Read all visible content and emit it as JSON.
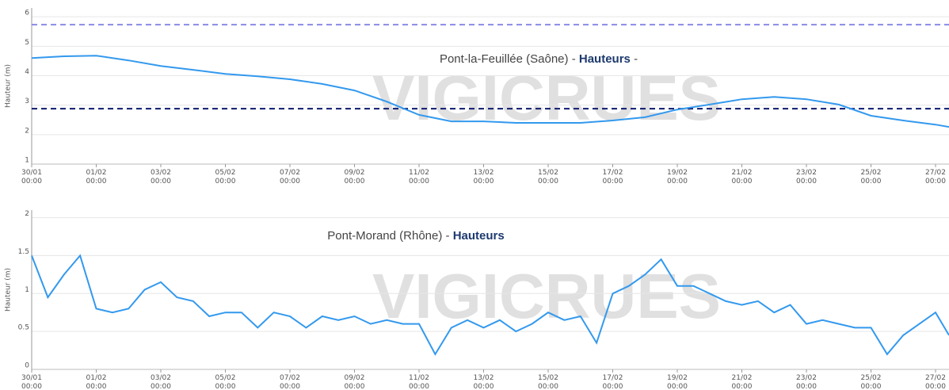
{
  "chart_data": [
    {
      "type": "line",
      "title": "Pont-la-Feuillée (Saône) -",
      "title_bold": "Hauteurs",
      "title_suffix": "-",
      "watermark": "VIGICRUES",
      "ylabel": "Hauteur (m)",
      "xlim": [
        "30/01 00:00",
        "27/02 10:00"
      ],
      "xticks": [
        "30/01 00:00",
        "01/02 00:00",
        "03/02 00:00",
        "05/02 00:00",
        "07/02 00:00",
        "09/02 00:00",
        "11/02 00:00",
        "13/02 00:00",
        "15/02 00:00",
        "17/02 00:00",
        "19/02 00:00",
        "21/02 00:00",
        "23/02 00:00",
        "25/02 00:00",
        "27/02 00:00"
      ],
      "ylim": [
        1,
        6.3
      ],
      "yticks": [
        1,
        2,
        3,
        4,
        5,
        6
      ],
      "grid": true,
      "thresholds": [
        {
          "value": 5.73,
          "color": "#8a8ae6"
        },
        {
          "value": 2.88,
          "color": "#0d1a6e"
        }
      ],
      "x": [
        "30/01 00:00",
        "31/01 00:00",
        "01/02 00:00",
        "02/02 00:00",
        "03/02 00:00",
        "04/02 00:00",
        "05/02 00:00",
        "06/02 00:00",
        "07/02 00:00",
        "08/02 00:00",
        "09/02 00:00",
        "10/02 00:00",
        "11/02 00:00",
        "12/02 00:00",
        "13/02 00:00",
        "14/02 00:00",
        "15/02 00:00",
        "16/02 00:00",
        "17/02 00:00",
        "18/02 00:00",
        "19/02 00:00",
        "20/02 00:00",
        "21/02 00:00",
        "22/02 00:00",
        "23/02 00:00",
        "24/02 00:00",
        "25/02 00:00",
        "26/02 00:00",
        "27/02 00:00",
        "27/02 10:00"
      ],
      "series": [
        {
          "name": "Hauteurs",
          "color": "#3399ee",
          "values": [
            4.6,
            4.66,
            4.68,
            4.52,
            4.33,
            4.2,
            4.06,
            3.98,
            3.88,
            3.72,
            3.5,
            3.12,
            2.67,
            2.45,
            2.45,
            2.4,
            2.4,
            2.4,
            2.48,
            2.59,
            2.85,
            3.02,
            3.2,
            3.28,
            3.2,
            3.02,
            2.64,
            2.48,
            2.34,
            2.26
          ]
        }
      ]
    },
    {
      "type": "line",
      "title": "Pont-Morand (Rhône) -",
      "title_bold": "Hauteurs",
      "title_suffix": null,
      "watermark": "VIGICRUES",
      "ylabel": "Hauteur (m)",
      "xlim": [
        "30/01 00:00",
        "27/02 10:00"
      ],
      "xticks": [
        "30/01 00:00",
        "01/02 00:00",
        "03/02 00:00",
        "05/02 00:00",
        "07/02 00:00",
        "09/02 00:00",
        "11/02 00:00",
        "13/02 00:00",
        "15/02 00:00",
        "17/02 00:00",
        "19/02 00:00",
        "21/02 00:00",
        "23/02 00:00",
        "25/02 00:00",
        "27/02 00:00"
      ],
      "ylim": [
        0,
        2.1
      ],
      "yticks": [
        0,
        0.5,
        1,
        1.5,
        2
      ],
      "grid": true,
      "thresholds": [],
      "x": [
        "30/01 00:00",
        "30/01 12:00",
        "31/01 00:00",
        "31/01 12:00",
        "01/02 00:00",
        "01/02 12:00",
        "02/02 00:00",
        "02/02 12:00",
        "03/02 00:00",
        "03/02 12:00",
        "04/02 00:00",
        "04/02 12:00",
        "05/02 00:00",
        "05/02 12:00",
        "06/02 00:00",
        "06/02 12:00",
        "07/02 00:00",
        "07/02 12:00",
        "08/02 00:00",
        "08/02 12:00",
        "09/02 00:00",
        "09/02 12:00",
        "10/02 00:00",
        "10/02 12:00",
        "11/02 00:00",
        "11/02 12:00",
        "12/02 00:00",
        "12/02 12:00",
        "13/02 00:00",
        "13/02 12:00",
        "14/02 00:00",
        "14/02 12:00",
        "15/02 00:00",
        "15/02 12:00",
        "16/02 00:00",
        "16/02 12:00",
        "17/02 00:00",
        "17/02 12:00",
        "18/02 00:00",
        "18/02 12:00",
        "19/02 00:00",
        "19/02 12:00",
        "20/02 00:00",
        "20/02 12:00",
        "21/02 00:00",
        "21/02 12:00",
        "22/02 00:00",
        "22/02 12:00",
        "23/02 00:00",
        "23/02 12:00",
        "24/02 00:00",
        "24/02 12:00",
        "25/02 00:00",
        "25/02 12:00",
        "26/02 00:00",
        "26/02 12:00",
        "27/02 00:00",
        "27/02 10:00"
      ],
      "series": [
        {
          "name": "Hauteurs",
          "color": "#3399ee",
          "values": [
            1.5,
            0.95,
            1.25,
            1.5,
            0.8,
            0.75,
            0.8,
            1.05,
            1.15,
            0.95,
            0.9,
            0.7,
            0.75,
            0.75,
            0.55,
            0.75,
            0.7,
            0.55,
            0.7,
            0.65,
            0.7,
            0.6,
            0.65,
            0.6,
            0.6,
            0.2,
            0.55,
            0.65,
            0.55,
            0.65,
            0.5,
            0.6,
            0.75,
            0.65,
            0.7,
            0.35,
            1.0,
            1.1,
            1.25,
            1.45,
            1.1,
            1.1,
            1.0,
            0.9,
            0.85,
            0.9,
            0.75,
            0.85,
            0.6,
            0.65,
            0.6,
            0.55,
            0.55,
            0.2,
            0.45,
            0.6,
            0.75,
            0.45
          ]
        }
      ]
    }
  ]
}
